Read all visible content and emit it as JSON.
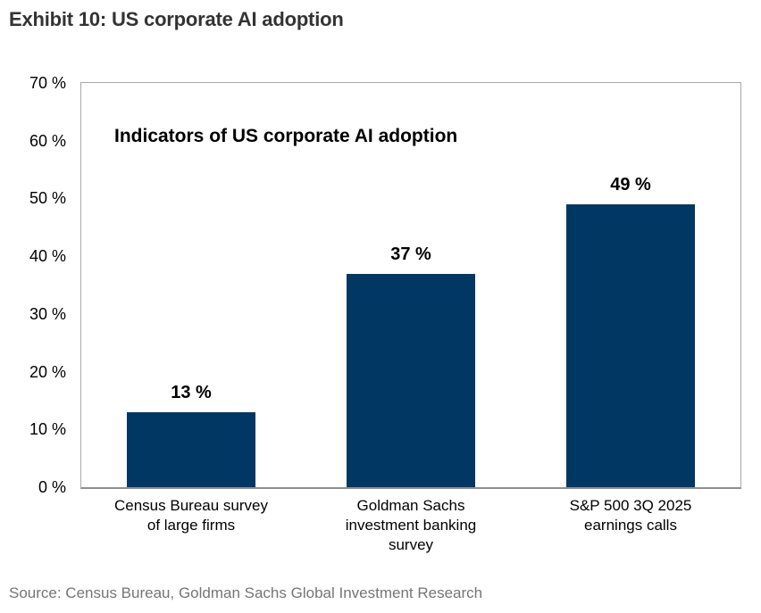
{
  "page": {
    "exhibit_title": "Exhibit 10: US corporate AI adoption",
    "source": "Source: Census Bureau, Goldman Sachs Global Investment Research"
  },
  "chart_data": {
    "type": "bar",
    "title": "Indicators of US corporate AI adoption",
    "categories": [
      "Census Bureau survey\nof large firms",
      "Goldman Sachs\ninvestment banking\nsurvey",
      "S&P 500 3Q 2025\nearnings calls"
    ],
    "values": [
      13,
      37,
      49
    ],
    "value_labels": [
      "13 %",
      "37 %",
      "49 %"
    ],
    "xlabel": "",
    "ylabel": "",
    "ylim": [
      0,
      70
    ],
    "yticks": [
      0,
      10,
      20,
      30,
      40,
      50,
      60,
      70
    ],
    "ytick_labels": [
      "0 %",
      "10 %",
      "20 %",
      "30 %",
      "40 %",
      "50 %",
      "60 %",
      "70 %"
    ],
    "bar_color": "#003763",
    "grid": false,
    "legend": false
  }
}
